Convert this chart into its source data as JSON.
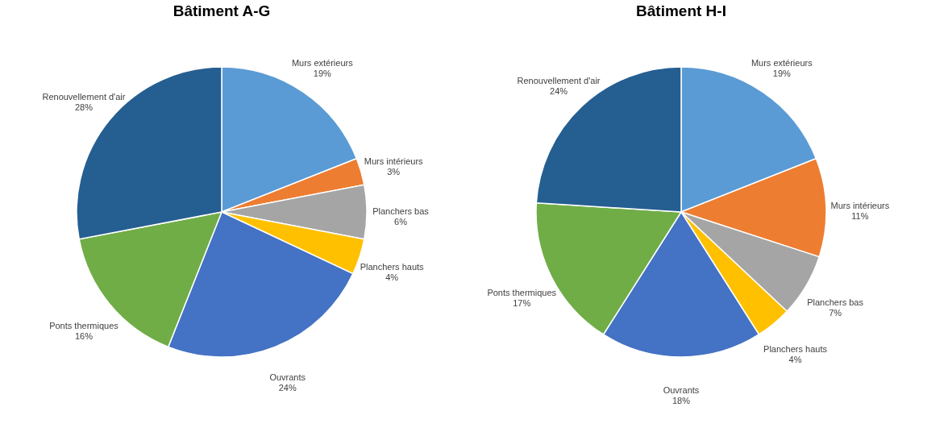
{
  "chart_data": [
    {
      "type": "pie",
      "title": "Bâtiment A-G",
      "categories": [
        "Murs extérieurs",
        "Murs intérieurs",
        "Planchers bas",
        "Planchers hauts",
        "Ouvrants",
        "Ponts thermiques",
        "Renouvellement d'air"
      ],
      "values": [
        19,
        3,
        6,
        4,
        24,
        16,
        28
      ],
      "value_labels": [
        "19%",
        "3%",
        "6%",
        "4%",
        "24%",
        "16%",
        "28%"
      ],
      "colors": [
        "#5b9bd5",
        "#ed7d31",
        "#a5a5a5",
        "#ffc000",
        "#4472c4",
        "#70ad47",
        "#255e91"
      ]
    },
    {
      "type": "pie",
      "title": "Bâtiment H-I",
      "categories": [
        "Murs extérieurs",
        "Murs intérieurs",
        "Planchers bas",
        "Planchers hauts",
        "Ouvrants",
        "Ponts thermiques",
        "Renouvellement d'air"
      ],
      "values": [
        19,
        11,
        7,
        4,
        18,
        17,
        24
      ],
      "value_labels": [
        "19%",
        "11%",
        "7%",
        "4%",
        "18%",
        "17%",
        "24%"
      ],
      "colors": [
        "#5b9bd5",
        "#ed7d31",
        "#a5a5a5",
        "#ffc000",
        "#4472c4",
        "#70ad47",
        "#255e91"
      ]
    }
  ]
}
